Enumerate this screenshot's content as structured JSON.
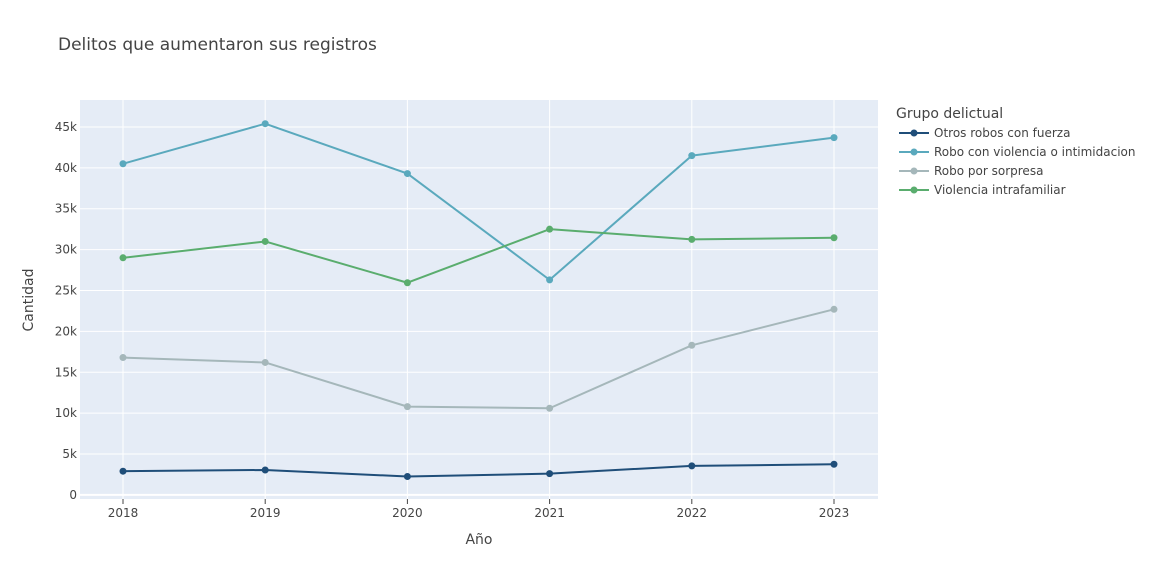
{
  "chart_data": {
    "type": "line",
    "title": "Delitos que aumentaron sus registros",
    "xlabel": "Año",
    "ylabel": "Cantidad",
    "categories": [
      "2018",
      "2019",
      "2020",
      "2021",
      "2022",
      "2023"
    ],
    "ylim": [
      -500,
      48300
    ],
    "yticks": [
      0,
      5000,
      10000,
      15000,
      20000,
      25000,
      30000,
      35000,
      40000,
      45000
    ],
    "ytick_labels": [
      "0",
      "5k",
      "10k",
      "15k",
      "20k",
      "25k",
      "30k",
      "35k",
      "40k",
      "45k"
    ],
    "grid": true,
    "legend_title": "Grupo delictual",
    "legend_position": "right",
    "series": [
      {
        "name": "Otros robos con fuerza",
        "color": "#1f4e79",
        "values": [
          2900,
          3050,
          2250,
          2600,
          3550,
          3750
        ]
      },
      {
        "name": "Robo con violencia o intimidacion",
        "color": "#5aa9bd",
        "values": [
          40500,
          45400,
          39300,
          26300,
          41500,
          43700
        ]
      },
      {
        "name": "Robo por sorpresa",
        "color": "#a5b7ba",
        "values": [
          16800,
          16200,
          10800,
          10600,
          18300,
          22700
        ]
      },
      {
        "name": "Violencia intrafamiliar",
        "color": "#5aad6e",
        "values": [
          29000,
          31000,
          25950,
          32500,
          31250,
          31450
        ]
      }
    ]
  }
}
